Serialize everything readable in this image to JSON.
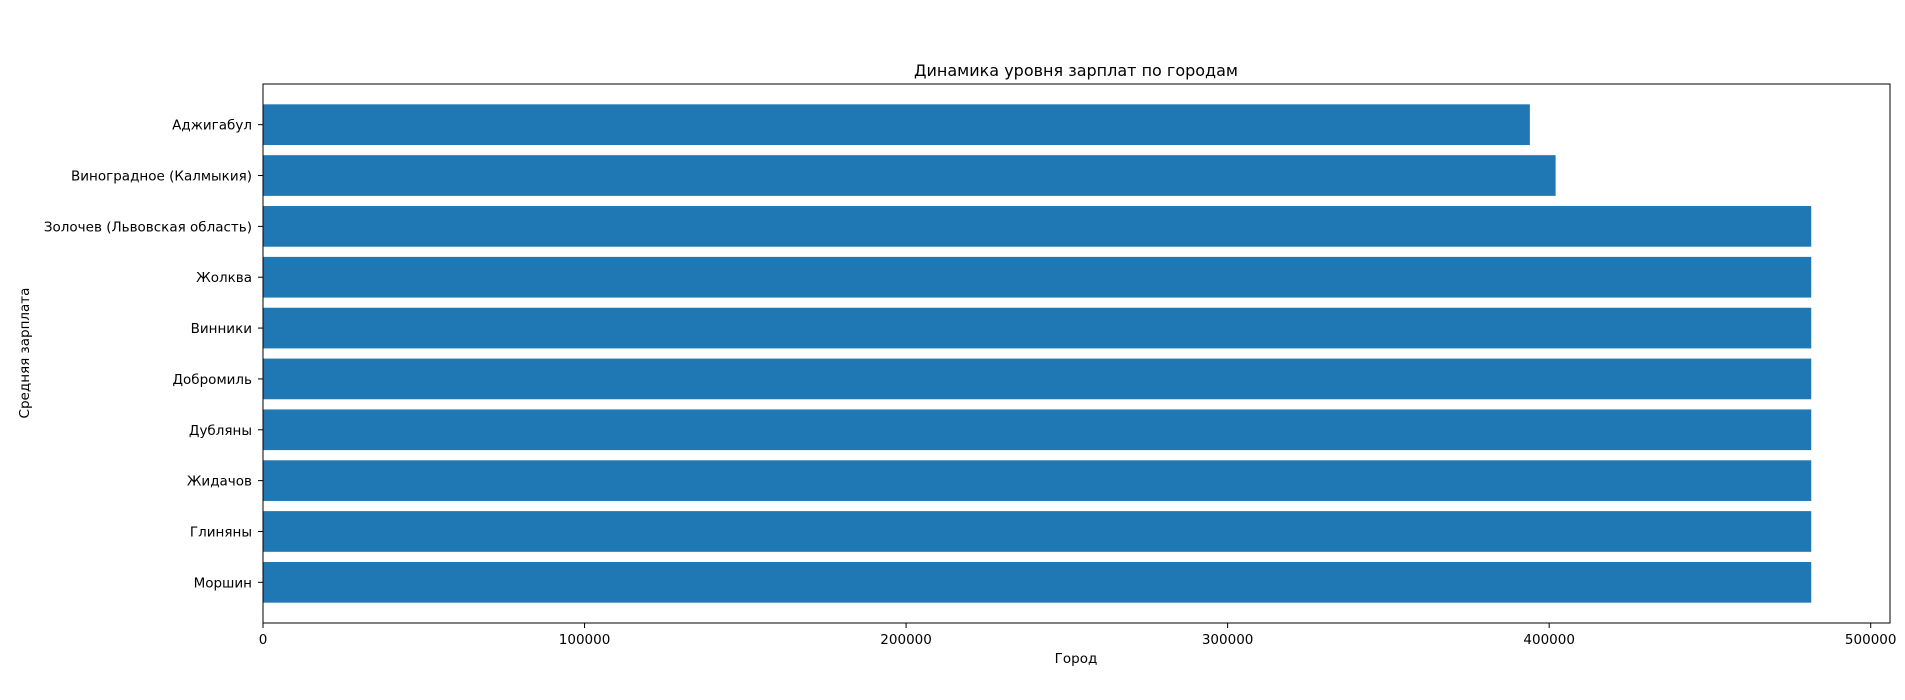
{
  "chart_data": {
    "type": "bar",
    "orientation": "horizontal",
    "title": "Динамика уровня зарплат по городам",
    "xlabel": "Город",
    "ylabel": "Средняя зарплата",
    "categories": [
      "Аджигабул",
      "Виноградное (Калмыкия)",
      "Золочев (Львовская область)",
      "Жолква",
      "Винники",
      "Добромиль",
      "Дубляны",
      "Жидачов",
      "Глиняны",
      "Моршин"
    ],
    "values": [
      394000,
      402000,
      481500,
      481500,
      481500,
      481500,
      481500,
      481500,
      481500,
      481500
    ],
    "xlim": [
      0,
      506000
    ],
    "xticks": [
      0,
      100000,
      200000,
      300000,
      400000,
      500000
    ],
    "xtick_labels": [
      "0",
      "100000",
      "200000",
      "300000",
      "400000",
      "500000"
    ],
    "bar_color": "#1f77b4",
    "grid": false,
    "legend": "none"
  }
}
